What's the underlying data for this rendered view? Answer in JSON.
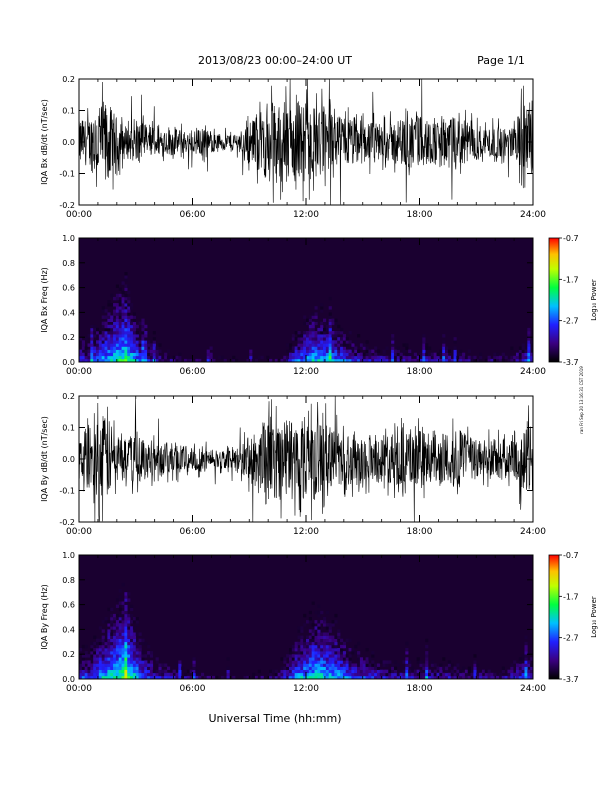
{
  "header": {
    "title": "2013/08/23  00:00–24:00 UT",
    "page": "Page 1/1"
  },
  "footer": {
    "xlabel": "Universal Time (hh:mm)"
  },
  "side_note": "ran Fri Sep 20 13:16:31 CST 2019",
  "chart_data": [
    {
      "type": "line",
      "title": "",
      "ylabel": "IQA Bx dB/dt (nT/sec)",
      "xlabel": "",
      "x_ticks": [
        "00:00",
        "06:00",
        "12:00",
        "18:00",
        "24:00"
      ],
      "xlim": [
        0,
        24
      ],
      "ylim": [
        -0.2,
        0.2
      ],
      "y_ticks": [
        "-0.2",
        "-0.1",
        "0.0",
        "0.1",
        "0.2"
      ],
      "series": [
        {
          "x": [
            0,
            0.5,
            1,
            1.5,
            2,
            2.5,
            3,
            3.5,
            4,
            4.5,
            5,
            5.5,
            6,
            6.5,
            7,
            7.5,
            8,
            8.5,
            9,
            9.5,
            10,
            10.5,
            11,
            11.5,
            12,
            12.5,
            13,
            13.5,
            14,
            14.5,
            15,
            15.5,
            16,
            16.5,
            17,
            17.5,
            18,
            18.5,
            19,
            19.5,
            20,
            20.5,
            21,
            21.5,
            22,
            22.5,
            23,
            23.5,
            24
          ],
          "values": [
            0.1,
            0.12,
            0.2,
            0.2,
            0.12,
            0.08,
            0.1,
            0.09,
            0.07,
            0.06,
            0.07,
            0.06,
            0.05,
            0.07,
            0.05,
            0.04,
            0.05,
            0.05,
            0.1,
            0.14,
            0.2,
            0.2,
            0.2,
            0.2,
            0.19,
            0.18,
            0.17,
            0.13,
            0.12,
            0.13,
            0.11,
            0.1,
            0.09,
            0.1,
            0.12,
            0.12,
            0.13,
            0.11,
            0.1,
            0.11,
            0.12,
            0.1,
            0.09,
            0.08,
            0.08,
            0.07,
            0.07,
            0.2,
            0.14
          ]
        }
      ]
    },
    {
      "type": "heatmap",
      "title": "",
      "ylabel": "IQA Bx Freq (Hz)",
      "xlabel": "",
      "x_ticks": [
        "00:00",
        "06:00",
        "12:00",
        "18:00",
        "24:00"
      ],
      "xlim": [
        0,
        24
      ],
      "ylim": [
        0,
        1.0
      ],
      "y_ticks": [
        "0.0",
        "0.2",
        "0.4",
        "0.6",
        "0.8",
        "1.0"
      ],
      "colorbar": {
        "label": "Log₁₀ Power",
        "ticks": [
          "-0.7",
          "-1.7",
          "-2.7",
          "-3.7"
        ],
        "range": [
          -3.7,
          -0.7
        ]
      },
      "low_freq_power_profile": [
        -2.6,
        -2.0,
        -1.6,
        -2.6,
        -3.0,
        -3.2,
        -3.3,
        -3.3,
        -3.4,
        -3.3,
        -3.2,
        -2.4,
        -2.0,
        -2.2,
        -2.6,
        -2.8,
        -2.9,
        -2.9,
        -2.9,
        -2.9,
        -3.0,
        -3.1,
        -3.1,
        -2.7
      ]
    },
    {
      "type": "line",
      "title": "",
      "ylabel": "IQA By dB/dt (nT/sec)",
      "xlabel": "",
      "x_ticks": [
        "00:00",
        "06:00",
        "12:00",
        "18:00",
        "24:00"
      ],
      "xlim": [
        0,
        24
      ],
      "ylim": [
        -0.2,
        0.2
      ],
      "y_ticks": [
        "-0.2",
        "-0.1",
        "0.0",
        "0.1",
        "0.2"
      ],
      "series": [
        {
          "x": [
            0,
            0.5,
            1,
            1.5,
            2,
            2.5,
            3,
            3.5,
            4,
            4.5,
            5,
            5.5,
            6,
            6.5,
            7,
            7.5,
            8,
            8.5,
            9,
            9.5,
            10,
            10.5,
            11,
            11.5,
            12,
            12.5,
            13,
            13.5,
            14,
            14.5,
            15,
            15.5,
            16,
            16.5,
            17,
            17.5,
            18,
            18.5,
            19,
            19.5,
            20,
            20.5,
            21,
            21.5,
            22,
            22.5,
            23,
            23.5,
            24
          ],
          "values": [
            0.1,
            0.15,
            0.2,
            0.2,
            0.14,
            0.1,
            0.12,
            0.1,
            0.08,
            0.08,
            0.08,
            0.07,
            0.06,
            0.07,
            0.05,
            0.05,
            0.04,
            0.06,
            0.12,
            0.18,
            0.2,
            0.2,
            0.2,
            0.2,
            0.2,
            0.2,
            0.18,
            0.15,
            0.12,
            0.14,
            0.12,
            0.11,
            0.12,
            0.12,
            0.14,
            0.13,
            0.14,
            0.12,
            0.11,
            0.13,
            0.14,
            0.12,
            0.1,
            0.1,
            0.1,
            0.1,
            0.09,
            0.2,
            0.16
          ]
        }
      ]
    },
    {
      "type": "heatmap",
      "title": "",
      "ylabel": "IQA By Freq (Hz)",
      "xlabel": "",
      "x_ticks": [
        "00:00",
        "06:00",
        "12:00",
        "18:00",
        "24:00"
      ],
      "xlim": [
        0,
        24
      ],
      "ylim": [
        0,
        1.0
      ],
      "y_ticks": [
        "0.0",
        "0.2",
        "0.4",
        "0.6",
        "0.8",
        "1.0"
      ],
      "colorbar": {
        "label": "Log₁₀ Power",
        "ticks": [
          "-0.7",
          "-1.7",
          "-2.7",
          "-3.7"
        ],
        "range": [
          -3.7,
          -0.7
        ]
      },
      "low_freq_power_profile": [
        -2.5,
        -1.9,
        -1.5,
        -2.4,
        -2.8,
        -3.0,
        -3.1,
        -3.2,
        -3.3,
        -3.2,
        -3.0,
        -2.2,
        -1.8,
        -2.0,
        -2.4,
        -2.6,
        -2.8,
        -2.8,
        -2.8,
        -2.8,
        -2.9,
        -3.0,
        -3.0,
        -2.6
      ]
    }
  ]
}
